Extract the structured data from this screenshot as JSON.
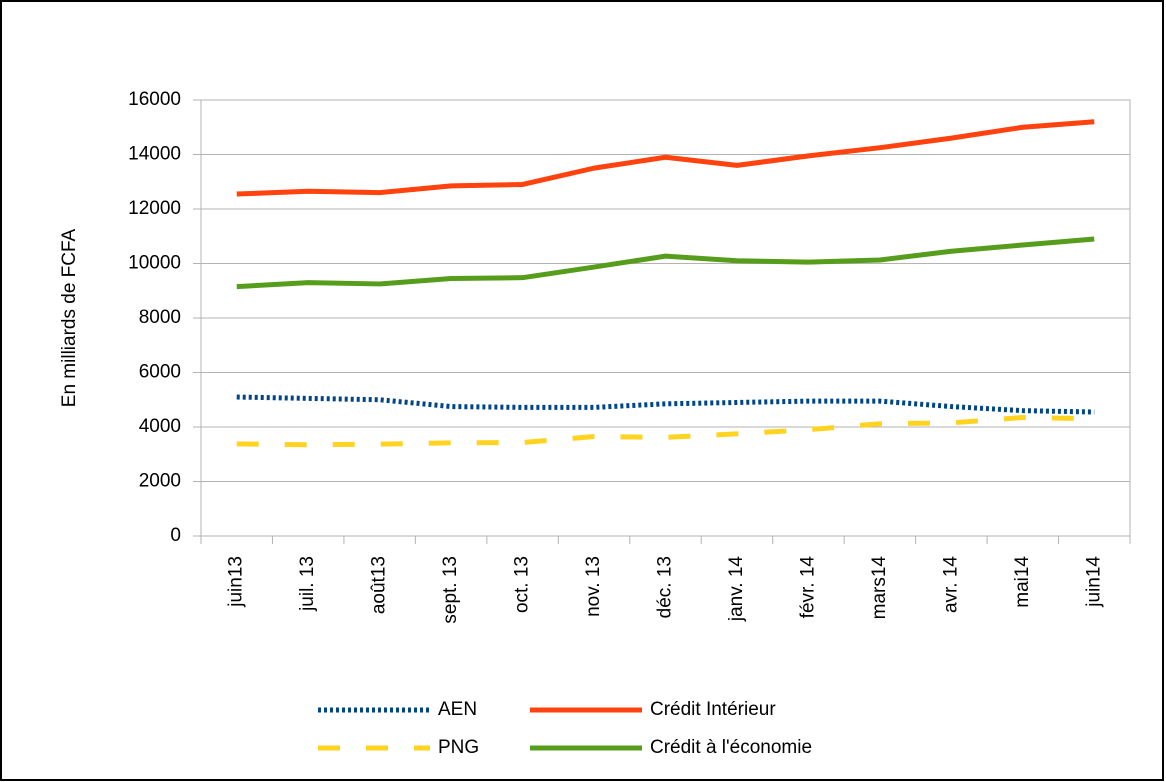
{
  "chart_data": {
    "type": "line",
    "y_label": "En milliards de FCFA",
    "categories": [
      "juin13",
      "juil. 13",
      "août13",
      "sept. 13",
      "oct. 13",
      "nov. 13",
      "déc. 13",
      "janv. 14",
      "févr. 14",
      "mars14",
      "avr. 14",
      "mai14",
      "juin14"
    ],
    "series": [
      {
        "name": "AEN",
        "color": "#004586",
        "dash": "dotted",
        "values": [
          5100,
          5050,
          5000,
          4750,
          4720,
          4720,
          4850,
          4900,
          4950,
          4950,
          4750,
          4600,
          4550
        ]
      },
      {
        "name": "Crédit Intérieur",
        "color": "#ff420e",
        "dash": "solid",
        "values": [
          12550,
          12650,
          12600,
          12850,
          12900,
          13500,
          13900,
          13600,
          13950,
          14250,
          14600,
          15000,
          15200
        ]
      },
      {
        "name": "PNG",
        "color": "#ffd320",
        "dash": "dashed",
        "values": [
          3380,
          3350,
          3370,
          3420,
          3430,
          3650,
          3620,
          3750,
          3900,
          4120,
          4150,
          4350,
          4300
        ]
      },
      {
        "name": "Crédit à l'économie",
        "color": "#579d1c",
        "dash": "solid",
        "values": [
          9150,
          9300,
          9250,
          9450,
          9480,
          9870,
          10270,
          10100,
          10050,
          10130,
          10450,
          10680,
          10900
        ]
      }
    ],
    "ylim": [
      0,
      16000
    ],
    "yticks": [
      0,
      2000,
      4000,
      6000,
      8000,
      10000,
      12000,
      14000,
      16000
    ],
    "grid": true
  }
}
